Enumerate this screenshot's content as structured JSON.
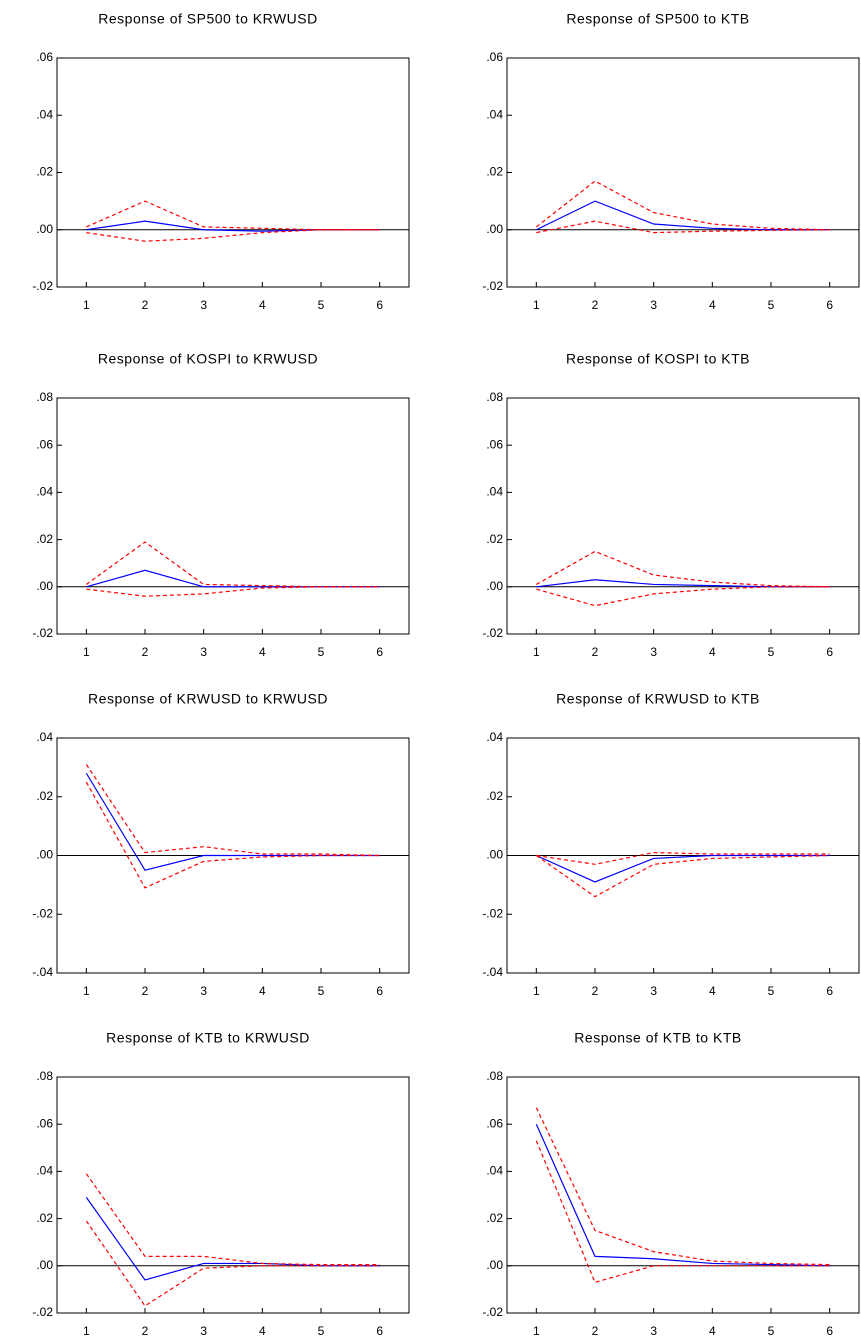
{
  "chart_data": [
    {
      "type": "line",
      "title": "Response of SP500 to KRWUSD",
      "x": [
        1,
        2,
        3,
        4,
        5,
        6
      ],
      "xlim": [
        0.5,
        6.5
      ],
      "xticks": [
        1,
        2,
        3,
        4,
        5,
        6
      ],
      "ylim": [
        -0.02,
        0.06
      ],
      "yticks": [
        {
          "value": -0.02,
          "label": "-.02"
        },
        {
          "value": 0,
          "label": ".00"
        },
        {
          "value": 0.02,
          "label": ".02"
        },
        {
          "value": 0.04,
          "label": ".04"
        },
        {
          "value": 0.06,
          "label": ".06"
        }
      ],
      "series": [
        {
          "color": "#0000ff",
          "dash": false,
          "values": [
            0,
            0.003,
            0,
            -0.0005,
            0,
            0
          ]
        },
        {
          "color": "#ff0000",
          "dash": true,
          "values": [
            0.001,
            0.01,
            0.001,
            0.0005,
            0,
            0
          ]
        },
        {
          "color": "#ff0000",
          "dash": true,
          "values": [
            -0.001,
            -0.004,
            -0.003,
            -0.001,
            0,
            0
          ]
        }
      ]
    },
    {
      "type": "line",
      "title": "Response of SP500 to KTB",
      "x": [
        1,
        2,
        3,
        4,
        5,
        6
      ],
      "xlim": [
        0.5,
        6.5
      ],
      "xticks": [
        1,
        2,
        3,
        4,
        5,
        6
      ],
      "ylim": [
        -0.02,
        0.06
      ],
      "yticks": [
        {
          "value": -0.02,
          "label": "-.02"
        },
        {
          "value": 0,
          "label": ".00"
        },
        {
          "value": 0.02,
          "label": ".02"
        },
        {
          "value": 0.04,
          "label": ".04"
        },
        {
          "value": 0.06,
          "label": ".06"
        }
      ],
      "series": [
        {
          "color": "#0000ff",
          "dash": false,
          "values": [
            0,
            0.01,
            0.002,
            0.0005,
            0,
            0
          ]
        },
        {
          "color": "#ff0000",
          "dash": true,
          "values": [
            0.001,
            0.017,
            0.006,
            0.002,
            0.0005,
            0
          ]
        },
        {
          "color": "#ff0000",
          "dash": true,
          "values": [
            -0.001,
            0.003,
            -0.001,
            -0.0005,
            -0.0002,
            0
          ]
        }
      ]
    },
    {
      "type": "line",
      "title": "Response of KOSPI to KRWUSD",
      "x": [
        1,
        2,
        3,
        4,
        5,
        6
      ],
      "xlim": [
        0.5,
        6.5
      ],
      "xticks": [
        1,
        2,
        3,
        4,
        5,
        6
      ],
      "ylim": [
        -0.02,
        0.08
      ],
      "yticks": [
        {
          "value": -0.02,
          "label": "-.02"
        },
        {
          "value": 0,
          "label": ".00"
        },
        {
          "value": 0.02,
          "label": ".02"
        },
        {
          "value": 0.04,
          "label": ".04"
        },
        {
          "value": 0.06,
          "label": ".06"
        },
        {
          "value": 0.08,
          "label": ".08"
        }
      ],
      "series": [
        {
          "color": "#0000ff",
          "dash": false,
          "values": [
            0,
            0.007,
            0,
            0,
            0,
            0
          ]
        },
        {
          "color": "#ff0000",
          "dash": true,
          "values": [
            0.001,
            0.019,
            0.001,
            0.0005,
            0,
            0
          ]
        },
        {
          "color": "#ff0000",
          "dash": true,
          "values": [
            -0.001,
            -0.004,
            -0.003,
            -0.0005,
            0,
            0
          ]
        }
      ]
    },
    {
      "type": "line",
      "title": "Response of KOSPI to KTB",
      "x": [
        1,
        2,
        3,
        4,
        5,
        6
      ],
      "xlim": [
        0.5,
        6.5
      ],
      "xticks": [
        1,
        2,
        3,
        4,
        5,
        6
      ],
      "ylim": [
        -0.02,
        0.08
      ],
      "yticks": [
        {
          "value": -0.02,
          "label": "-.02"
        },
        {
          "value": 0,
          "label": ".00"
        },
        {
          "value": 0.02,
          "label": ".02"
        },
        {
          "value": 0.04,
          "label": ".04"
        },
        {
          "value": 0.06,
          "label": ".06"
        },
        {
          "value": 0.08,
          "label": ".08"
        }
      ],
      "series": [
        {
          "color": "#0000ff",
          "dash": false,
          "values": [
            0,
            0.003,
            0.001,
            0.0005,
            0,
            0
          ]
        },
        {
          "color": "#ff0000",
          "dash": true,
          "values": [
            0.001,
            0.015,
            0.005,
            0.002,
            0.0005,
            0
          ]
        },
        {
          "color": "#ff0000",
          "dash": true,
          "values": [
            -0.001,
            -0.008,
            -0.003,
            -0.001,
            0,
            0
          ]
        }
      ]
    },
    {
      "type": "line",
      "title": "Response of KRWUSD to KRWUSD",
      "x": [
        1,
        2,
        3,
        4,
        5,
        6
      ],
      "xlim": [
        0.5,
        6.5
      ],
      "xticks": [
        1,
        2,
        3,
        4,
        5,
        6
      ],
      "ylim": [
        -0.04,
        0.04
      ],
      "yticks": [
        {
          "value": -0.04,
          "label": "-.04"
        },
        {
          "value": -0.02,
          "label": "-.02"
        },
        {
          "value": 0,
          "label": ".00"
        },
        {
          "value": 0.02,
          "label": ".02"
        },
        {
          "value": 0.04,
          "label": ".04"
        }
      ],
      "series": [
        {
          "color": "#0000ff",
          "dash": false,
          "values": [
            0.028,
            -0.005,
            0,
            0,
            0,
            0
          ]
        },
        {
          "color": "#ff0000",
          "dash": true,
          "values": [
            0.031,
            0.001,
            0.003,
            0.0005,
            0.0005,
            0
          ]
        },
        {
          "color": "#ff0000",
          "dash": true,
          "values": [
            0.025,
            -0.011,
            -0.002,
            -0.0005,
            0,
            0
          ]
        }
      ]
    },
    {
      "type": "line",
      "title": "Response of KRWUSD to KTB",
      "x": [
        1,
        2,
        3,
        4,
        5,
        6
      ],
      "xlim": [
        0.5,
        6.5
      ],
      "xticks": [
        1,
        2,
        3,
        4,
        5,
        6
      ],
      "ylim": [
        -0.04,
        0.04
      ],
      "yticks": [
        {
          "value": -0.04,
          "label": "-.04"
        },
        {
          "value": -0.02,
          "label": "-.02"
        },
        {
          "value": 0,
          "label": ".00"
        },
        {
          "value": 0.02,
          "label": ".02"
        },
        {
          "value": 0.04,
          "label": ".04"
        }
      ],
      "series": [
        {
          "color": "#0000ff",
          "dash": false,
          "values": [
            0,
            -0.009,
            -0.001,
            0,
            0,
            0
          ]
        },
        {
          "color": "#ff0000",
          "dash": true,
          "values": [
            0,
            -0.003,
            0.001,
            0.0005,
            0.0005,
            0.0005
          ]
        },
        {
          "color": "#ff0000",
          "dash": true,
          "values": [
            0,
            -0.014,
            -0.003,
            -0.001,
            -0.0005,
            0
          ]
        }
      ]
    },
    {
      "type": "line",
      "title": "Response of KTB to KRWUSD",
      "x": [
        1,
        2,
        3,
        4,
        5,
        6
      ],
      "xlim": [
        0.5,
        6.5
      ],
      "xticks": [
        1,
        2,
        3,
        4,
        5,
        6
      ],
      "ylim": [
        -0.02,
        0.08
      ],
      "yticks": [
        {
          "value": -0.02,
          "label": "-.02"
        },
        {
          "value": 0,
          "label": ".00"
        },
        {
          "value": 0.02,
          "label": ".02"
        },
        {
          "value": 0.04,
          "label": ".04"
        },
        {
          "value": 0.06,
          "label": ".06"
        },
        {
          "value": 0.08,
          "label": ".08"
        }
      ],
      "series": [
        {
          "color": "#0000ff",
          "dash": false,
          "values": [
            0.029,
            -0.006,
            0.001,
            0.001,
            0,
            0
          ]
        },
        {
          "color": "#ff0000",
          "dash": true,
          "values": [
            0.039,
            0.004,
            0.004,
            0.001,
            0.0005,
            0.0005
          ]
        },
        {
          "color": "#ff0000",
          "dash": true,
          "values": [
            0.019,
            -0.017,
            -0.001,
            0,
            0,
            0
          ]
        }
      ]
    },
    {
      "type": "line",
      "title": "Response of KTB to KTB",
      "x": [
        1,
        2,
        3,
        4,
        5,
        6
      ],
      "xlim": [
        0.5,
        6.5
      ],
      "xticks": [
        1,
        2,
        3,
        4,
        5,
        6
      ],
      "ylim": [
        -0.02,
        0.08
      ],
      "yticks": [
        {
          "value": -0.02,
          "label": "-.02"
        },
        {
          "value": 0,
          "label": ".00"
        },
        {
          "value": 0.02,
          "label": ".02"
        },
        {
          "value": 0.04,
          "label": ".04"
        },
        {
          "value": 0.06,
          "label": ".06"
        },
        {
          "value": 0.08,
          "label": ".08"
        }
      ],
      "series": [
        {
          "color": "#0000ff",
          "dash": false,
          "values": [
            0.06,
            0.004,
            0.003,
            0.001,
            0.0005,
            0
          ]
        },
        {
          "color": "#ff0000",
          "dash": true,
          "values": [
            0.067,
            0.015,
            0.006,
            0.002,
            0.001,
            0.0005
          ]
        },
        {
          "color": "#ff0000",
          "dash": true,
          "values": [
            0.053,
            -0.007,
            0,
            0,
            0,
            0
          ]
        }
      ]
    }
  ]
}
